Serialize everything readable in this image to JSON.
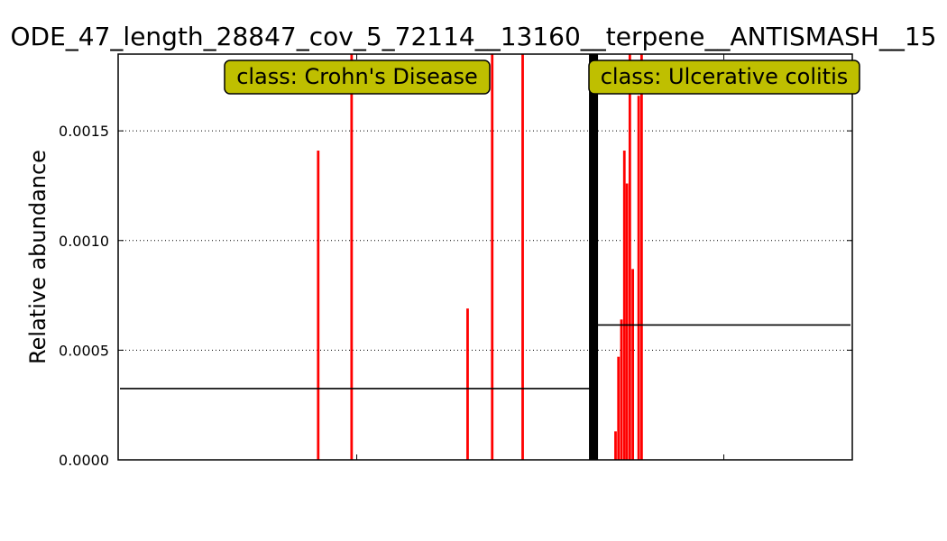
{
  "chart_data": {
    "type": "bar",
    "title": "ODE_47_length_28847_cov_5_72114__13160__terpene__ANTISMASH__15",
    "ylabel": "Relative abundance",
    "xlabel": "",
    "xlim": [
      0,
      200
    ],
    "ylim": [
      0,
      0.00185
    ],
    "yticks": [
      "0.0000",
      "0.0005",
      "0.0010",
      "0.0015"
    ],
    "ytick_values": [
      0,
      0.0005,
      0.001,
      0.0015
    ],
    "xtick_values": [
      65,
      165
    ],
    "grid": "horizontal-dotted",
    "classes": [
      {
        "label": "class: Crohn's Disease",
        "mean": 0.000325,
        "x_range": [
          0,
          129
        ]
      },
      {
        "label": "class: Ulcerative colitis",
        "mean": 0.000615,
        "x_range": [
          130,
          200
        ]
      }
    ],
    "separator_x": 129.5,
    "bar_color": "#ff0000",
    "mean_line_color": "#000000",
    "label_box_color": "#bfbf00",
    "bars": [
      {
        "x": 54.5,
        "value": 0.00141
      },
      {
        "x": 63.6,
        "value": 0.00185
      },
      {
        "x": 95.2,
        "value": 0.00069
      },
      {
        "x": 101.9,
        "value": 0.00185
      },
      {
        "x": 110.2,
        "value": 0.00185
      },
      {
        "x": 135.5,
        "value": 0.00013
      },
      {
        "x": 136.3,
        "value": 0.00047
      },
      {
        "x": 137.1,
        "value": 0.00064
      },
      {
        "x": 137.9,
        "value": 0.00141
      },
      {
        "x": 138.6,
        "value": 0.00126
      },
      {
        "x": 139.4,
        "value": 0.00185
      },
      {
        "x": 140.2,
        "value": 0.00087
      },
      {
        "x": 141.8,
        "value": 0.00166
      },
      {
        "x": 142.6,
        "value": 0.00185
      }
    ]
  }
}
